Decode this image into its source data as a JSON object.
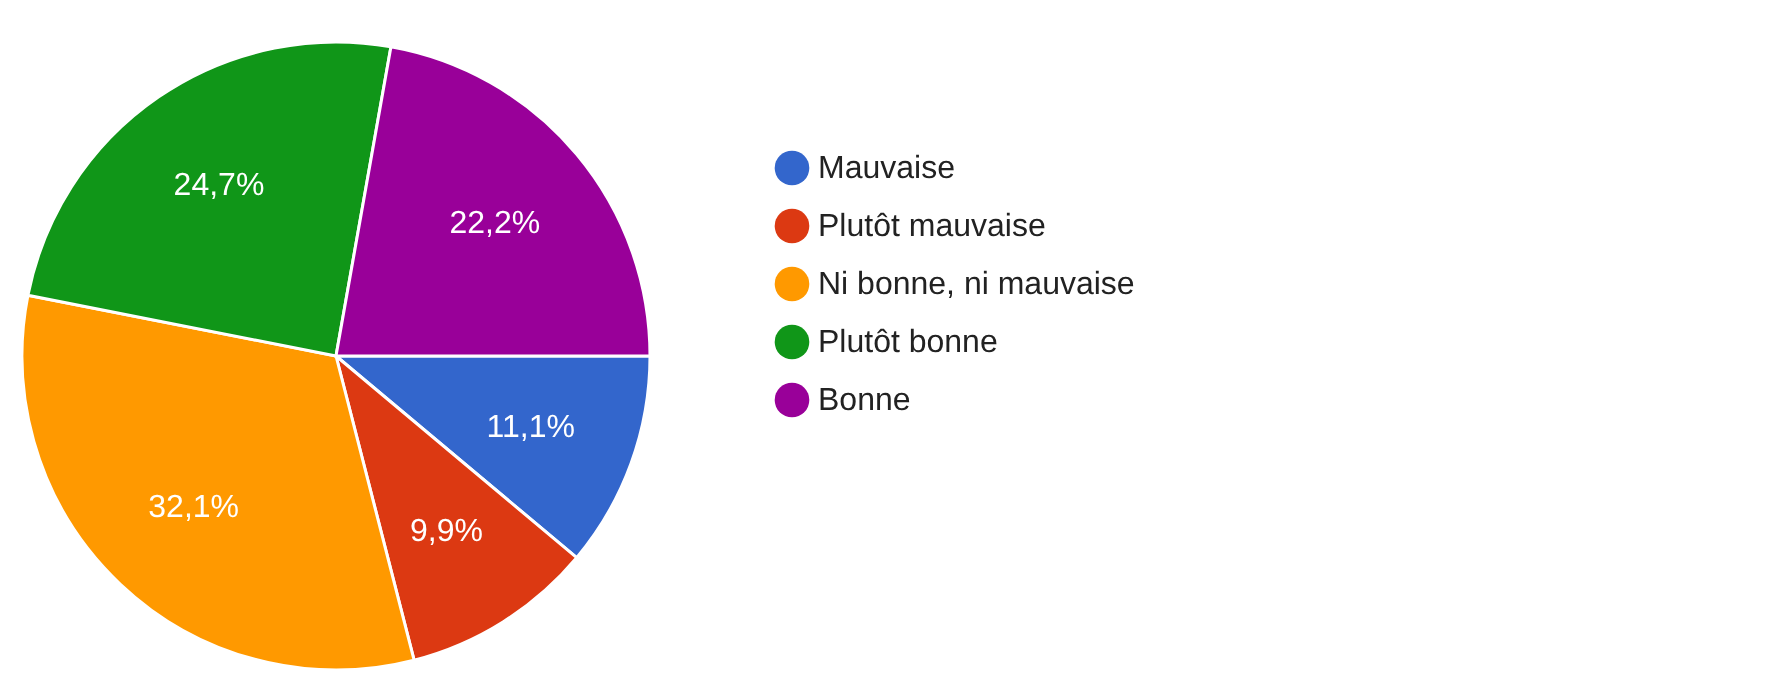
{
  "chart_data": {
    "type": "pie",
    "categories": [
      "Mauvaise",
      "Plutôt mauvaise",
      "Ni bonne, ni mauvaise",
      "Plutôt bonne",
      "Bonne"
    ],
    "values": [
      11.1,
      9.9,
      32.1,
      24.7,
      22.2
    ],
    "colors": [
      "#3366cc",
      "#dc3912",
      "#ff9900",
      "#109618",
      "#990099"
    ],
    "value_labels": [
      "11,1%",
      "9,9%",
      "32,1%",
      "24,7%",
      "22,2%"
    ],
    "legend": "right"
  }
}
